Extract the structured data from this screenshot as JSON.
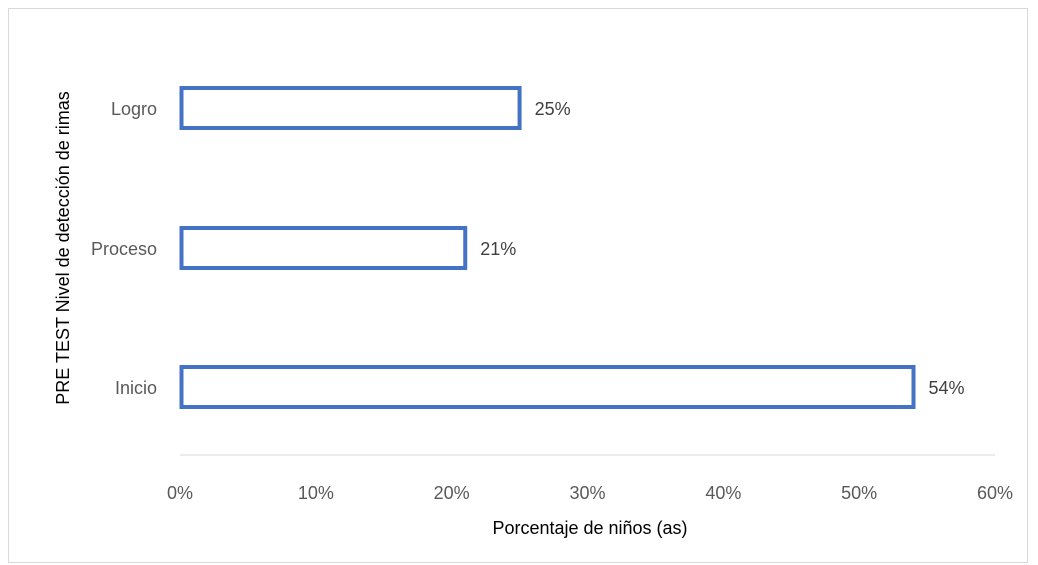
{
  "chart_data": {
    "type": "bar",
    "orientation": "horizontal",
    "categories": [
      "Inicio",
      "Proceso",
      "Logro"
    ],
    "values": [
      54,
      21,
      25
    ],
    "data_labels": [
      "54%",
      "21%",
      "25%"
    ],
    "xlabel": "Porcentaje de niños (as)",
    "ylabel": "PRE TEST Nivel de detección de rimas",
    "xlim": [
      0,
      60
    ],
    "xticks": [
      "0%",
      "10%",
      "20%",
      "30%",
      "40%",
      "50%",
      "60%"
    ],
    "grid": false,
    "legend": "none",
    "bar_style": "outline",
    "bar_color": "#4472c4"
  }
}
